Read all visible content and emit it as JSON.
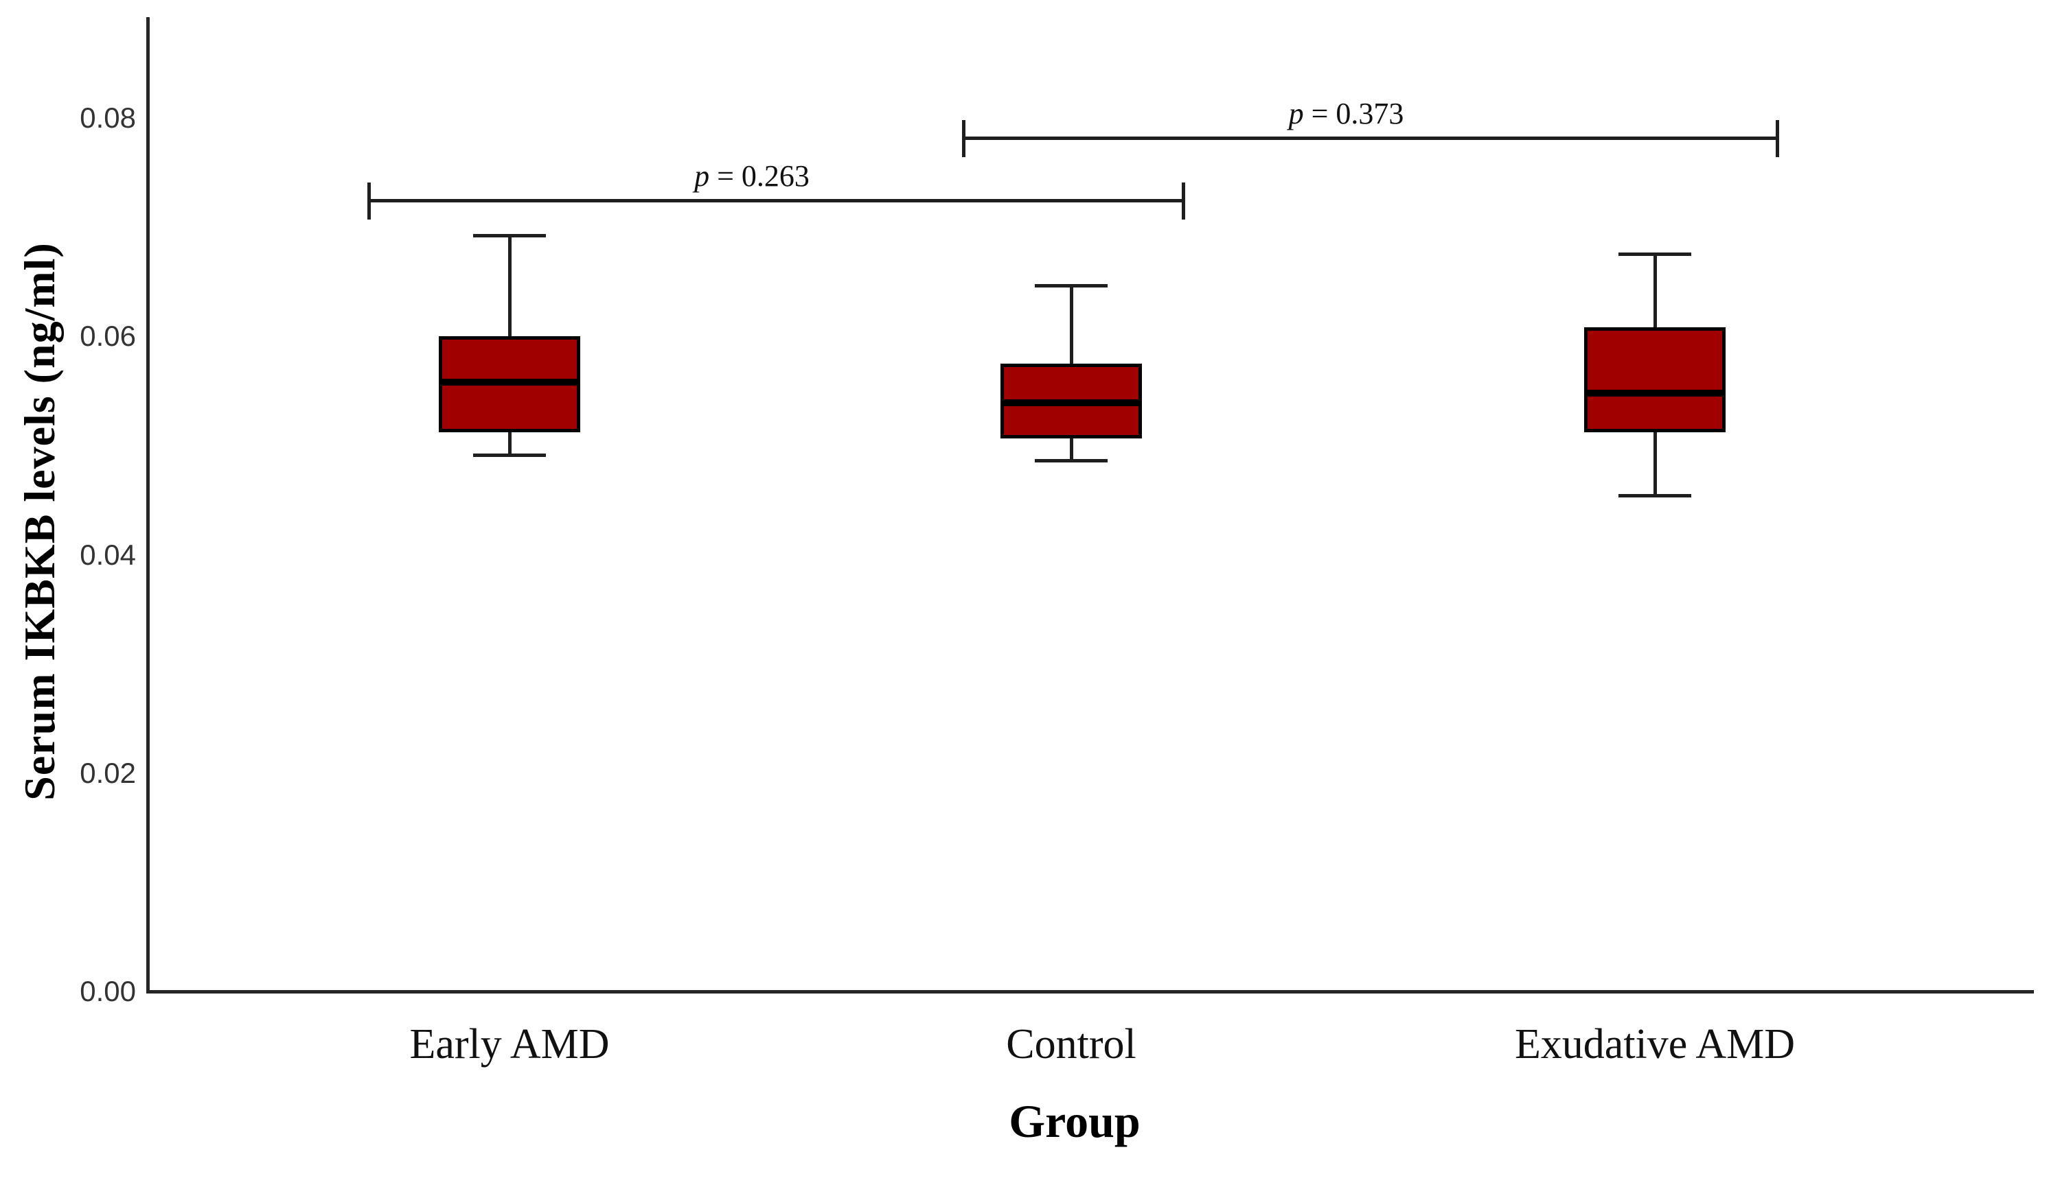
{
  "chart_data": {
    "type": "box",
    "title": "",
    "ylabel": "Serum IKBKB levels (ng/ml)",
    "xlabel": "Group",
    "ylim": [
      0,
      0.089
    ],
    "grid": false,
    "legend_position": "none",
    "y_ticks": [
      {
        "label": "0.00",
        "value": 0.0
      },
      {
        "label": "0.02",
        "value": 0.02
      },
      {
        "label": "0.04",
        "value": 0.04
      },
      {
        "label": "0.06",
        "value": 0.06
      },
      {
        "label": "0.08",
        "value": 0.08
      }
    ],
    "categories": [
      "Early AMD",
      "Control",
      "Exudative AMD"
    ],
    "series": [
      {
        "category": "Early AMD",
        "whisker_low": 0.049,
        "q1": 0.0511,
        "median": 0.0557,
        "q3": 0.0599,
        "whisker_high": 0.0691
      },
      {
        "category": "Control",
        "whisker_low": 0.0485,
        "q1": 0.0505,
        "median": 0.0538,
        "q3": 0.0574,
        "whisker_high": 0.0645
      },
      {
        "category": "Exudative AMD",
        "whisker_low": 0.0453,
        "q1": 0.0511,
        "median": 0.0547,
        "q3": 0.0607,
        "whisker_high": 0.0674
      }
    ],
    "comparisons": [
      {
        "p_symbol": "p",
        "p_rest": " = 0.263",
        "groups": [
          "Early AMD",
          "Control"
        ],
        "level": 0.0723
      },
      {
        "p_symbol": "p",
        "p_rest": " = 0.373",
        "groups": [
          "Control",
          "Exudative AMD"
        ],
        "level": 0.078
      }
    ],
    "colors": {
      "box_fill": "#A00000",
      "box_border": "#000000",
      "median": "#000000",
      "axis": "#262626"
    }
  }
}
